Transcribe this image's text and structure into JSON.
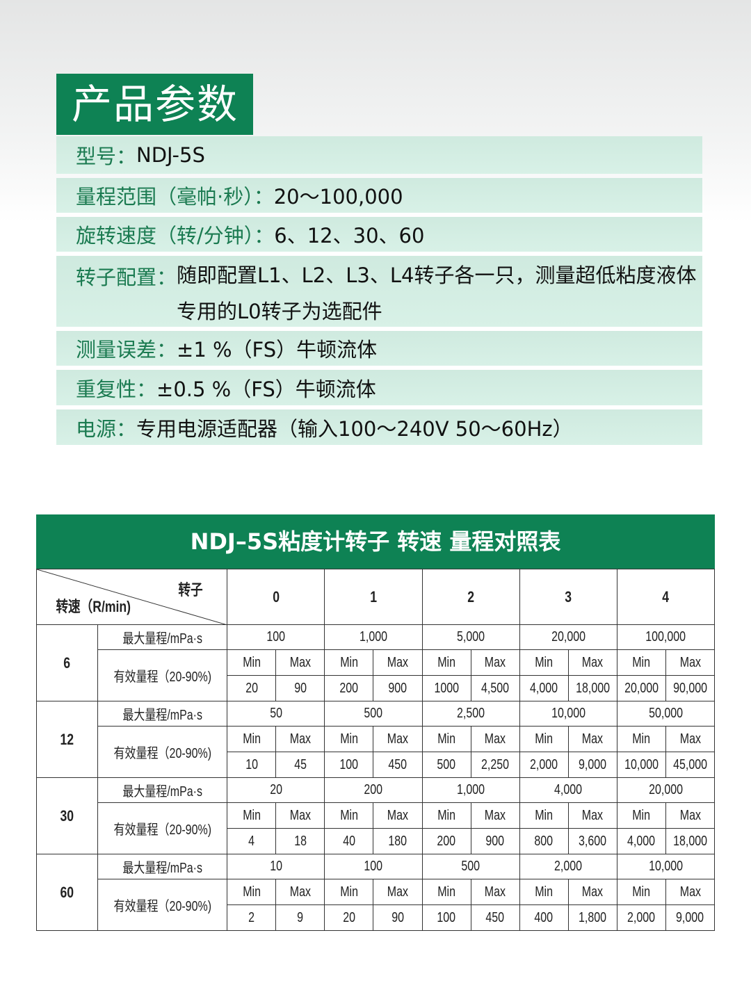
{
  "section_title": "产品参数",
  "specs": [
    {
      "label": "型号：",
      "value": "NDJ-5S"
    },
    {
      "label": "量程范围（毫帕·秒）：",
      "value": "20～100,000"
    },
    {
      "label": "旋转速度（转/分钟）：",
      "value": "6、12、30、60"
    },
    {
      "label": "转子配置：",
      "value": "随即配置L1、L2、L3、L4转子各一只，测量超低粘度液体专用的L0转子为选配件"
    },
    {
      "label": "测量误差：",
      "value": "±1 %（FS）牛顿流体"
    },
    {
      "label": "重复性：",
      "value": "±0.5 %（FS）牛顿流体"
    },
    {
      "label": "电源：",
      "value": "专用电源适配器（输入100～240V  50～60Hz）"
    }
  ],
  "table": {
    "title": "NDJ–5S粘度计转子 转速 量程对照表",
    "corner_rotor": "转子",
    "corner_speed": "转速（R/min)",
    "rotors": [
      "0",
      "1",
      "2",
      "3",
      "4"
    ],
    "max_label": "最大量程/mPa·s",
    "eff_label": "有效量程（20-90%)",
    "min_label": "Min",
    "max_col_label": "Max",
    "rows": [
      {
        "speed": "6",
        "max": [
          "100",
          "1,000",
          "5,000",
          "20,000",
          "100,000"
        ],
        "range": [
          [
            "20",
            "90"
          ],
          [
            "200",
            "900"
          ],
          [
            "1000",
            "4,500"
          ],
          [
            "4,000",
            "18,000"
          ],
          [
            "20,000",
            "90,000"
          ]
        ]
      },
      {
        "speed": "12",
        "max": [
          "50",
          "500",
          "2,500",
          "10,000",
          "50,000"
        ],
        "range": [
          [
            "10",
            "45"
          ],
          [
            "100",
            "450"
          ],
          [
            "500",
            "2,250"
          ],
          [
            "2,000",
            "9,000"
          ],
          [
            "10,000",
            "45,000"
          ]
        ]
      },
      {
        "speed": "30",
        "max": [
          "20",
          "200",
          "1,000",
          "4,000",
          "20,000"
        ],
        "range": [
          [
            "4",
            "18"
          ],
          [
            "40",
            "180"
          ],
          [
            "200",
            "900"
          ],
          [
            "800",
            "3,600"
          ],
          [
            "4,000",
            "18,000"
          ]
        ]
      },
      {
        "speed": "60",
        "max": [
          "10",
          "100",
          "500",
          "2,000",
          "10,000"
        ],
        "range": [
          [
            "2",
            "9"
          ],
          [
            "20",
            "90"
          ],
          [
            "100",
            "450"
          ],
          [
            "400",
            "1,800"
          ],
          [
            "2,000",
            "9,000"
          ]
        ]
      }
    ]
  }
}
